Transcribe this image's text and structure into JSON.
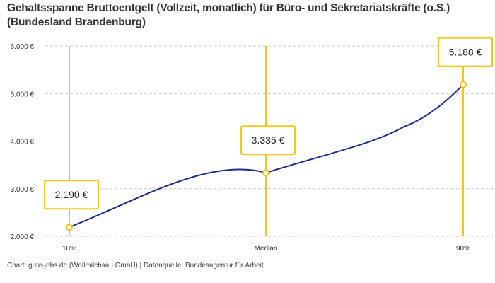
{
  "title": "Gehaltsspanne Bruttoentgelt (Vollzeit, monatlich) für Büro- und Sekretariatskräfte (o.S.) (Bundesland Brandenburg)",
  "source": "Chart: gute-jobs.de (Wollmilchsau GmbH) | Datenquelle: Bundesagentur für Arbeit",
  "chart_data": {
    "type": "line",
    "title": "Gehaltsspanne Bruttoentgelt (Vollzeit, monatlich) für Büro- und Sekretariatskräfte (o.S.) (Bundesland Brandenburg)",
    "categories": [
      "10%",
      "Median",
      "90%"
    ],
    "values": [
      2190,
      3335,
      5188
    ],
    "data_labels": [
      "2.190 €",
      "3.335 €",
      "5.188 €"
    ],
    "ylim": [
      2000,
      6000
    ],
    "yticks": [
      2000,
      3000,
      4000,
      5000,
      6000
    ],
    "ytick_labels": [
      "2.000 €",
      "3.000 €",
      "4.000 €",
      "5.000 €",
      "6.000 €"
    ],
    "grid": true,
    "colors": {
      "line": "#1f2d8c",
      "marker": "#f5c518",
      "grid": "#cccccc"
    }
  }
}
